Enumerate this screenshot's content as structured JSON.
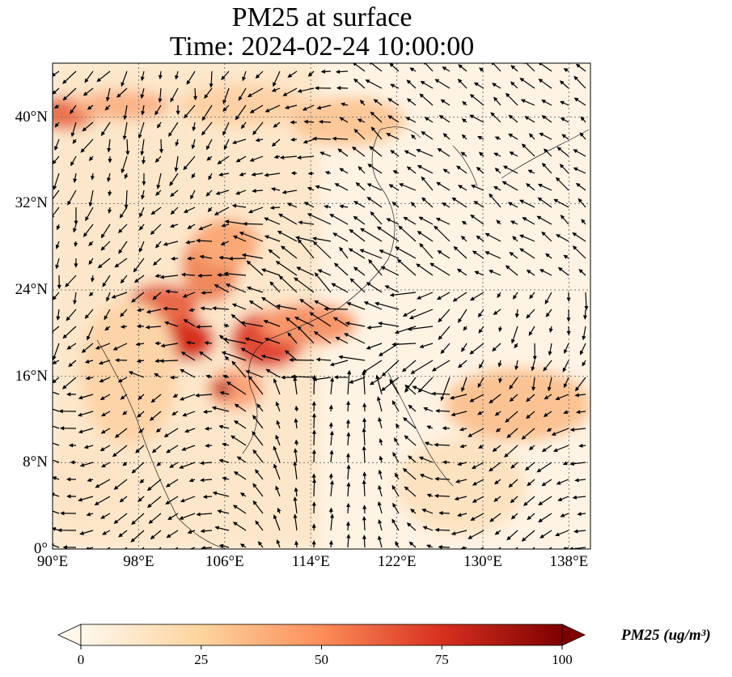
{
  "title": {
    "line1": "PM25 at surface",
    "line2": "Time: 2024-02-24 10:00:00"
  },
  "axes": {
    "x_ticks": [
      "90°E",
      "98°E",
      "106°E",
      "114°E",
      "122°E",
      "130°E",
      "138°E"
    ],
    "y_ticks": [
      "40°N",
      "32°N",
      "24°N",
      "16°N",
      "8°N",
      "0°"
    ],
    "lon_range": [
      90,
      140
    ],
    "lat_range": [
      0,
      45
    ],
    "gridlines": "dotted"
  },
  "colorbar": {
    "label": "PM25 (ug/m³)",
    "ticks": [
      "0",
      "25",
      "50",
      "75",
      "100"
    ],
    "range": [
      0,
      100
    ],
    "extend": "both",
    "colormap": "OrRd",
    "colors": [
      "#fff7ec",
      "#fdd49e",
      "#fc8d59",
      "#d7301f",
      "#7f0000"
    ]
  },
  "map": {
    "background_color": "#fff3e4",
    "coastlines": true,
    "wind_vectors": true
  }
}
